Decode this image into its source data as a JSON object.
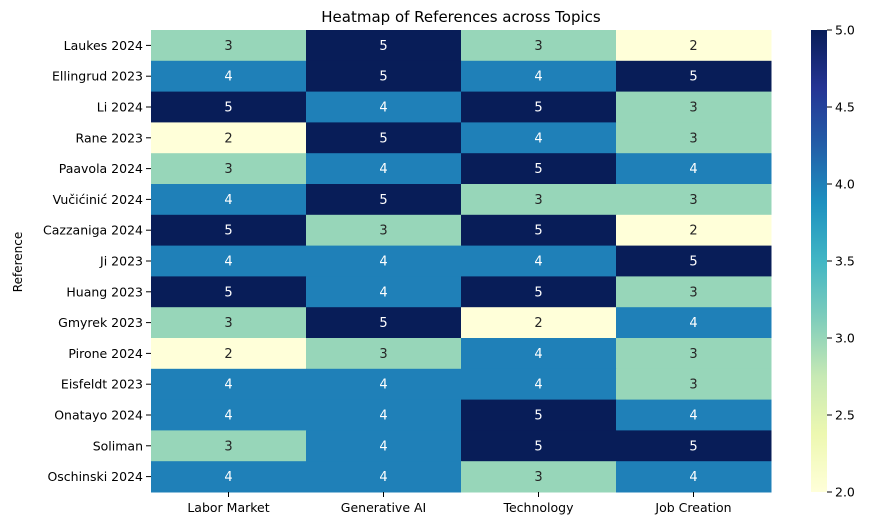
{
  "chart_data": {
    "type": "heatmap",
    "title": "Heatmap of References across Topics",
    "xlabel": "",
    "ylabel": "Reference",
    "columns": [
      "Labor Market",
      "Generative AI",
      "Technology",
      "Job Creation"
    ],
    "rows": [
      "Laukes 2024",
      "Ellingrud 2023",
      "Li 2024",
      "Rane 2023",
      "Paavola 2024",
      "Vučićinić 2024",
      "Cazzaniga 2024",
      "Ji 2023",
      "Huang 2023",
      "Gmyrek 2023",
      "Pirone 2024",
      "Eisfeldt 2023",
      "Onatayo 2024",
      "Soliman",
      "Oschinski 2024"
    ],
    "values": [
      [
        3,
        5,
        3,
        2
      ],
      [
        4,
        5,
        4,
        5
      ],
      [
        5,
        4,
        5,
        3
      ],
      [
        2,
        5,
        4,
        3
      ],
      [
        3,
        4,
        5,
        4
      ],
      [
        4,
        5,
        3,
        3
      ],
      [
        5,
        3,
        5,
        2
      ],
      [
        4,
        4,
        4,
        5
      ],
      [
        5,
        4,
        5,
        3
      ],
      [
        3,
        5,
        2,
        4
      ],
      [
        2,
        3,
        4,
        3
      ],
      [
        4,
        4,
        4,
        3
      ],
      [
        4,
        4,
        5,
        4
      ],
      [
        3,
        4,
        5,
        5
      ],
      [
        4,
        4,
        3,
        4
      ]
    ],
    "colormap": "YlGnBu",
    "vmin": 2.0,
    "vmax": 5.0,
    "colorbar_ticks": [
      "2.0",
      "2.5",
      "3.0",
      "3.5",
      "4.0",
      "4.5",
      "5.0"
    ],
    "annotations": true
  }
}
